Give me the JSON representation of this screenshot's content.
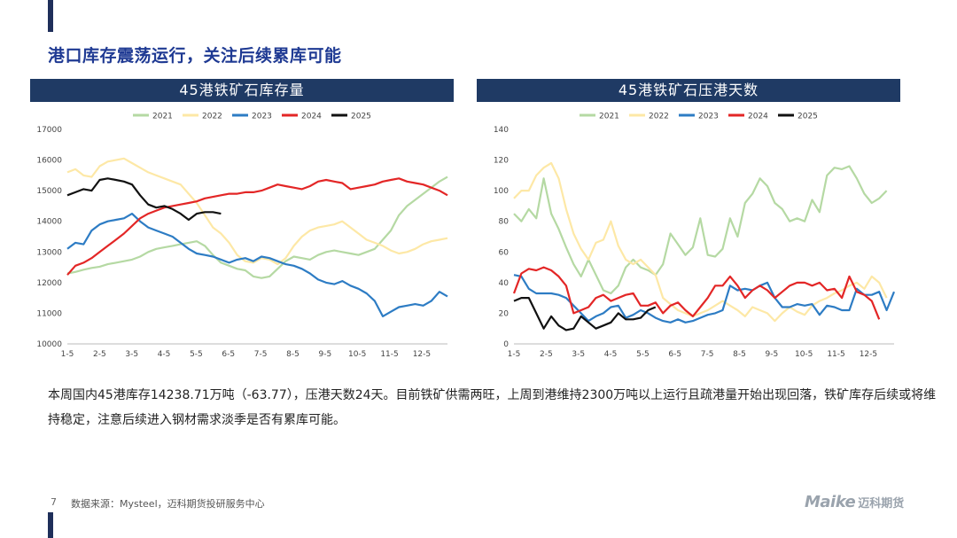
{
  "slide": {
    "title": "港口库存震荡运行，关注后续累库可能",
    "body": "本周国内45港库存14238.71万吨（-63.77），压港天数24天。目前铁矿供需两旺，上周到港维持2300万吨以上运行且疏港量开始出现回落，铁矿库存后续或将维持稳定，注意后续进入钢材需求淡季是否有累库可能。",
    "page_number": "7",
    "source": "数据来源：Mysteel，迈科期货投研服务中心",
    "logo_en": "Maike",
    "logo_cn": "迈科期货"
  },
  "chart_data": [
    {
      "type": "line",
      "title": "45港铁矿石库存量",
      "ylim": [
        10000,
        17000
      ],
      "yticks": [
        10000,
        11000,
        12000,
        13000,
        14000,
        15000,
        16000,
        17000
      ],
      "x_tick_labels": [
        "1-5",
        "2-5",
        "3-5",
        "4-5",
        "5-5",
        "6-5",
        "7-5",
        "8-5",
        "9-5",
        "10-5",
        "11-5",
        "12-5"
      ],
      "legend": "top",
      "series": [
        {
          "name": "2021",
          "color": "#b5d9a3",
          "values": [
            12300,
            12350,
            12420,
            12480,
            12520,
            12600,
            12650,
            12700,
            12750,
            12850,
            13000,
            13100,
            13150,
            13200,
            13250,
            13300,
            13350,
            13200,
            12900,
            12650,
            12550,
            12450,
            12400,
            12200,
            12150,
            12200,
            12450,
            12700,
            12850,
            12800,
            12750,
            12900,
            13000,
            13050,
            13000,
            12950,
            12900,
            13000,
            13100,
            13400,
            13700,
            14200,
            14500,
            14700,
            14900,
            15100,
            15300,
            15450
          ]
        },
        {
          "name": "2022",
          "color": "#fde8a6",
          "values": [
            15600,
            15700,
            15500,
            15450,
            15800,
            15950,
            16000,
            16050,
            15900,
            15750,
            15600,
            15500,
            15400,
            15300,
            15200,
            14900,
            14600,
            14200,
            13800,
            13600,
            13300,
            12900,
            12700,
            12650,
            12800,
            12750,
            12600,
            12800,
            13200,
            13500,
            13700,
            13800,
            13850,
            13900,
            14000,
            13800,
            13600,
            13400,
            13300,
            13200,
            13050,
            12950,
            13000,
            13100,
            13250,
            13350,
            13400,
            13450
          ]
        },
        {
          "name": "2023",
          "color": "#2d7cc4",
          "values": [
            13100,
            13300,
            13250,
            13700,
            13900,
            14000,
            14050,
            14100,
            14250,
            14000,
            13800,
            13700,
            13600,
            13500,
            13300,
            13100,
            12950,
            12900,
            12850,
            12750,
            12650,
            12750,
            12800,
            12700,
            12850,
            12800,
            12700,
            12600,
            12550,
            12450,
            12300,
            12100,
            12000,
            11950,
            12050,
            11900,
            11800,
            11650,
            11400,
            10900,
            11050,
            11200,
            11250,
            11300,
            11250,
            11400,
            11700,
            11550
          ]
        },
        {
          "name": "2024",
          "color": "#e32626",
          "values": [
            12250,
            12550,
            12650,
            12800,
            13000,
            13200,
            13400,
            13600,
            13850,
            14100,
            14250,
            14350,
            14450,
            14500,
            14550,
            14600,
            14650,
            14750,
            14800,
            14850,
            14900,
            14900,
            14950,
            14950,
            15000,
            15100,
            15200,
            15150,
            15100,
            15050,
            15150,
            15300,
            15350,
            15300,
            15250,
            15050,
            15100,
            15150,
            15200,
            15300,
            15350,
            15400,
            15300,
            15250,
            15200,
            15100,
            15000,
            14850
          ]
        },
        {
          "name": "2025",
          "color": "#111111",
          "values": [
            14850,
            14950,
            15050,
            15000,
            15350,
            15400,
            15350,
            15300,
            15200,
            14850,
            14550,
            14450,
            14500,
            14400,
            14250,
            14050,
            14250,
            14300,
            14300,
            14250
          ]
        }
      ]
    },
    {
      "type": "line",
      "title": "45港铁矿石压港天数",
      "ylim": [
        0,
        140
      ],
      "yticks": [
        0,
        20,
        40,
        60,
        80,
        100,
        120,
        140
      ],
      "x_tick_labels": [
        "1-5",
        "2-5",
        "3-5",
        "4-5",
        "5-5",
        "6-5",
        "7-5",
        "8-5",
        "9-5",
        "10-5",
        "11-5",
        "12-5"
      ],
      "legend": "top",
      "series": [
        {
          "name": "2021",
          "color": "#b5d9a3",
          "values": [
            85,
            80,
            88,
            82,
            108,
            85,
            75,
            63,
            52,
            44,
            55,
            45,
            35,
            33,
            38,
            50,
            55,
            50,
            48,
            45,
            52,
            72,
            65,
            58,
            63,
            82,
            58,
            57,
            62,
            82,
            70,
            92,
            98,
            108,
            103,
            92,
            88,
            80,
            82,
            80,
            94,
            86,
            110,
            115,
            114,
            116,
            108,
            98,
            92,
            95,
            100
          ]
        },
        {
          "name": "2022",
          "color": "#fde8a6",
          "values": [
            95,
            100,
            100,
            110,
            115,
            118,
            108,
            88,
            72,
            62,
            55,
            66,
            68,
            80,
            64,
            55,
            52,
            55,
            50,
            45,
            30,
            26,
            22,
            20,
            18,
            20,
            22,
            25,
            28,
            25,
            22,
            18,
            24,
            22,
            20,
            15,
            20,
            24,
            21,
            19,
            25,
            28,
            30,
            33,
            35,
            38,
            40,
            36,
            44,
            40,
            30
          ]
        },
        {
          "name": "2023",
          "color": "#2d7cc4",
          "values": [
            45,
            44,
            36,
            33,
            33,
            33,
            32,
            30,
            25,
            20,
            15,
            18,
            20,
            24,
            25,
            17,
            19,
            22,
            20,
            17,
            15,
            14,
            16,
            14,
            15,
            17,
            19,
            20,
            22,
            38,
            35,
            36,
            35,
            38,
            40,
            30,
            24,
            24,
            26,
            25,
            26,
            19,
            25,
            24,
            22,
            22,
            36,
            32,
            32,
            34,
            22,
            34
          ]
        },
        {
          "name": "2024",
          "color": "#e32626",
          "values": [
            33,
            46,
            49,
            48,
            50,
            48,
            44,
            38,
            20,
            22,
            24,
            30,
            32,
            28,
            30,
            32,
            33,
            25,
            25,
            27,
            20,
            25,
            27,
            22,
            18,
            24,
            30,
            38,
            38,
            44,
            38,
            30,
            35,
            38,
            35,
            30,
            34,
            38,
            40,
            40,
            38,
            40,
            35,
            36,
            30,
            44,
            34,
            32,
            28,
            16
          ]
        },
        {
          "name": "2025",
          "color": "#111111",
          "values": [
            28,
            30,
            30,
            20,
            10,
            18,
            12,
            9,
            10,
            18,
            14,
            10,
            12,
            14,
            20,
            16,
            16,
            17,
            22,
            24
          ]
        }
      ]
    }
  ]
}
